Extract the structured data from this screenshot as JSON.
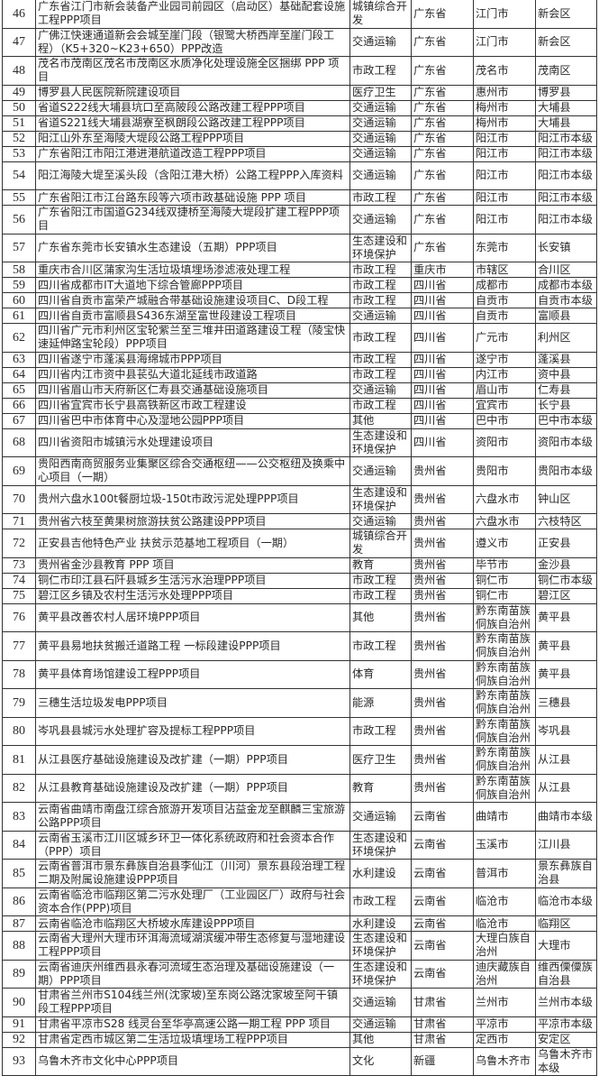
{
  "table": {
    "rows": [
      [
        "46",
        "广东省江门市新会装备产业园司前园区（启动区）基础配套设施工程PPP项目",
        "城镇综合开发",
        "广东省",
        "江门市",
        "新会区"
      ],
      [
        "47",
        "广佛江快速通道新会会城至崖门段（银鹭大桥西岸至崖门段工程）（K5+320~K23+650）PPP改造",
        "交通运输",
        "广东省",
        "江门市",
        "新会区"
      ],
      [
        "48",
        "茂名市茂南区茂名市茂南区水质净化处理设施全区捆绑 PPP 项目",
        "市政工程",
        "广东省",
        "茂名市",
        "茂南区"
      ],
      [
        "49",
        "博罗县人民医院新院建设项目",
        "医疗卫生",
        "广东省",
        "惠州市",
        "博罗县"
      ],
      [
        "50",
        "省道S222线大埔县坑口至高陂段公路改建工程PPP项目",
        "交通运输",
        "广东省",
        "梅州市",
        "大埔县"
      ],
      [
        "51",
        "省道S221线大埔县湖寮至枫朗段公路改建工程PPP项目",
        "交通运输",
        "广东省",
        "梅州市",
        "大埔县"
      ],
      [
        "52",
        "阳江山外东至海陵大堤段公路工程PPP项目",
        "交通运输",
        "广东省",
        "阳江市",
        "阳江市本级"
      ],
      [
        "53",
        "广东省阳江市阳江港进港航道改造工程PPP项目",
        "交通运输",
        "广东省",
        "阳江市",
        "阳江市本级"
      ],
      [
        "54",
        "阳江海陵大堤至溪头段（含阳江港大桥）公路工程PPP入库资料",
        "交通运输",
        "广东省",
        "阳江市",
        "阳江市本级"
      ],
      [
        "55",
        "广东省阳江市江台路东段等六项市政基础设施 PPP 项目",
        "市政工程",
        "广东省",
        "阳江市",
        "阳江市本级"
      ],
      [
        "56",
        "广东省阳江市国道G234线双捷桥至海陵大堤段扩建工程PPP项目",
        "交通运输",
        "广东省",
        "阳江市",
        "阳江市本级"
      ],
      [
        "57",
        "广东省东莞市长安镇水生态建设（五期）PPP项目",
        "生态建设和环境保护",
        "广东省",
        "东莞市",
        "长安镇"
      ],
      [
        "58",
        "重庆市合川区蒲家沟生活垃圾填埋场渗滤液处理工程",
        "市政工程",
        "重庆市",
        "市辖区",
        "合川区"
      ],
      [
        "59",
        "四川省成都市IT大道地下综合管廊PPP项目",
        "市政工程",
        "四川省",
        "成都市",
        "成都市本级"
      ],
      [
        "60",
        "四川省自贡市富荣产城融合带基础设施建设项目C、D段工程",
        "市政工程",
        "四川省",
        "自贡市",
        "自贡市本级"
      ],
      [
        "61",
        "四川省自贡市富顺县S436东湖至富世段建设工程项目",
        "交通运输",
        "四川省",
        "自贡市",
        "富顺县"
      ],
      [
        "62",
        "四川省广元市利州区宝轮紫兰至三堆井田道路建设工程（陵宝快速延伸路宝轮段）PPP项目",
        "市政工程",
        "四川省",
        "广元市",
        "利州区"
      ],
      [
        "63",
        "四川省遂宁市蓬溪县海绵城市PPP项目",
        "市政工程",
        "四川省",
        "遂宁市",
        "蓬溪县"
      ],
      [
        "64",
        "四川省内江市资中县苌弘大道北延线市政道路",
        "市政工程",
        "四川省",
        "内江市",
        "资中县"
      ],
      [
        "65",
        "四川省眉山市天府新区仁寿县交通基础设施项目",
        "交通运输",
        "四川省",
        "眉山市",
        "仁寿县"
      ],
      [
        "66",
        "四川省宜宾市长宁县高铁新区市政工程建设",
        "市政工程",
        "四川省",
        "宜宾市",
        "长宁县"
      ],
      [
        "67",
        "四川省巴中市体育中心及湿地公园PPP项目",
        "其他",
        "四川省",
        "巴中市",
        "巴中市本级"
      ],
      [
        "68",
        "四川省资阳市城镇污水处理建设项目",
        "生态建设和环境保护",
        "四川省",
        "资阳市",
        "资阳市本级"
      ],
      [
        "69",
        "贵阳西南商贸服务业集聚区综合交通枢纽——公交枢纽及换乘中心项目（一期）",
        "交通运输",
        "贵州省",
        "贵阳市",
        "贵阳市本级"
      ],
      [
        "70",
        "贵州六盘水100t餐厨垃圾-150t市政污泥处理PPP项目",
        "生态建设和环境保护",
        "贵州省",
        "六盘水市",
        "钟山区"
      ],
      [
        "71",
        "贵州省六枝至黄果树旅游扶贫公路建设PPP项目",
        "交通运输",
        "贵州省",
        "六盘水市",
        "六枝特区"
      ],
      [
        "72",
        "正安县吉他特色产业 扶贫示范基地工程项目（一期）",
        "城镇综合开发",
        "贵州省",
        "遵义市",
        "正安县"
      ],
      [
        "73",
        "贵州省金沙县教育 PPP 项目",
        "教育",
        "贵州省",
        "毕节市",
        "金沙县"
      ],
      [
        "74",
        "铜仁市印江县石阡县城乡生活污水治理PPP项目",
        "市政工程",
        "贵州省",
        "铜仁市",
        "铜仁市本级"
      ],
      [
        "75",
        "碧江区乡镇及农村生活污水处理PPP项目",
        "市政工程",
        "贵州省",
        "铜仁市",
        "碧江区"
      ],
      [
        "76",
        "黄平县改善农村人居环境PPP项目",
        "其他",
        "贵州省",
        "黔东南苗族侗族自治州",
        "黄平县"
      ],
      [
        "77",
        "黄平县易地扶贫搬迁道路工程 一标段建设PPP项目",
        "市政工程",
        "贵州省",
        "黔东南苗族侗族自治州",
        "黄平县"
      ],
      [
        "78",
        "黄平县体育场馆建设工程PPP项目",
        "体育",
        "贵州省",
        "黔东南苗族侗族自治州",
        "黄平县"
      ],
      [
        "79",
        "三穗生活垃圾发电PPP项目",
        "能源",
        "贵州省",
        "黔东南苗族侗族自治州",
        "三穗县"
      ],
      [
        "80",
        "岑巩县县城污水处理扩容及提标工程PPP项目",
        "市政工程",
        "贵州省",
        "黔东南苗族侗族自治州",
        "岑巩县"
      ],
      [
        "81",
        "从江县医疗基础设施建设及改扩建（一期）PPP项目",
        "医疗卫生",
        "贵州省",
        "黔东南苗族侗族自治州",
        "从江县"
      ],
      [
        "82",
        "从江县教育基础设施建设及改扩建（一期）PPP项目",
        "教育",
        "贵州省",
        "黔东南苗族侗族自治州",
        "从江县"
      ],
      [
        "83",
        "云南省曲靖市南盘江综合旅游开发项目沾益金龙至麒麟三宝旅游公路PPP项目",
        "交通运输",
        "云南省",
        "曲靖市",
        "曲靖市本级"
      ],
      [
        "84",
        "云南省玉溪市江川区城乡环卫一体化系统政府和社会资本合作（PPP）项目",
        "生态建设和环境保护",
        "云南省",
        "玉溪市",
        "江川县"
      ],
      [
        "85",
        "云南省普洱市景东彝族自治县李仙江（川河）景东县段治理工程二期及附属设施建设PPP项目",
        "水利建设",
        "云南省",
        "普洱市",
        "景东彝族自治县"
      ],
      [
        "86",
        "云南省临沧市临翔区第二污水处理厂（工业园区厂）政府与社会资本合作(PPP)项目",
        "市政工程",
        "云南省",
        "临沧市",
        "临沧市本级"
      ],
      [
        "87",
        "云南省临沧市临翔区大桥坡水库建设PPP项目",
        "水利建设",
        "云南省",
        "临沧市",
        "临翔区"
      ],
      [
        "88",
        "云南省大理州大理市环洱海流域湖滨缓冲带生态修复与湿地建设工程PPP项目",
        "生态建设和环境保护",
        "云南省",
        "大理白族自治州",
        "大理市"
      ],
      [
        "89",
        "云南省迪庆州维西县永春河流域生态治理及基础设施建设（一期）PPP项目",
        "生态建设和环境保护",
        "云南省",
        "迪庆藏族自治州",
        "维西傈僳族自治县"
      ],
      [
        "90",
        "甘肃省兰州市S104线兰州(沈家坡)至东岗公路沈家坡至阿干镇段工程PPP项目",
        "交通运输",
        "甘肃省",
        "兰州市",
        "兰州市本级"
      ],
      [
        "91",
        "甘肃省平凉市S28 线灵台至华亭高速公路一期工程 PPP 项目",
        "交通运输",
        "甘肃省",
        "平凉市",
        "平凉市本级"
      ],
      [
        "92",
        "甘肃省定西市城区第二生活垃圾填埋场工程PPP项目",
        "其他",
        "甘肃省",
        "定西市",
        "安定区"
      ],
      [
        "93",
        "乌鲁木齐市文化中心PPP项目",
        "文化",
        "新疆",
        "乌鲁木齐市",
        "乌鲁木齐市本级"
      ]
    ],
    "tall_rows": [
      "46",
      "47",
      "48",
      "54",
      "56",
      "57",
      "62",
      "68",
      "69",
      "70",
      "72",
      "76",
      "77",
      "78",
      "79",
      "80",
      "81",
      "82",
      "83",
      "84",
      "85",
      "86",
      "88",
      "89",
      "90",
      "93"
    ]
  }
}
